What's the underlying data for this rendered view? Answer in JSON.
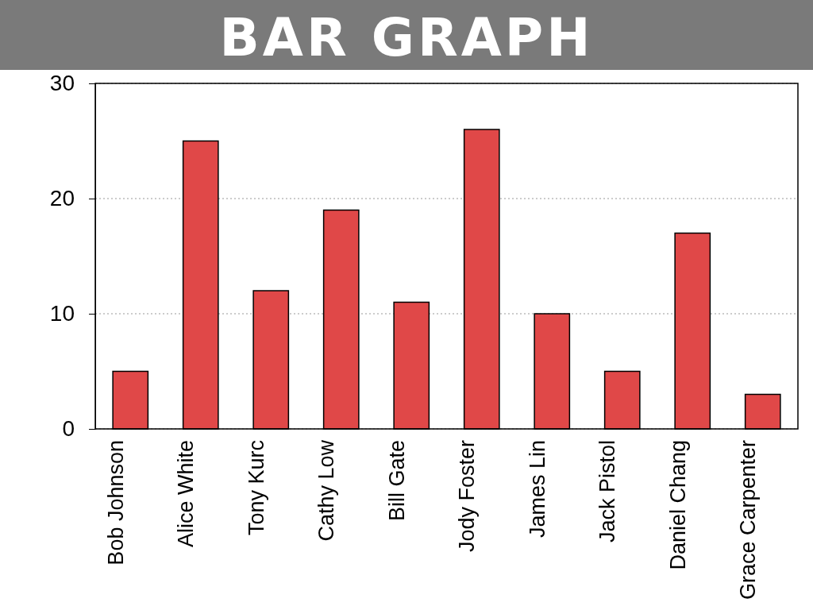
{
  "chart_data": {
    "type": "bar",
    "title": "BAR GRAPH",
    "categories": [
      "Bob Johnson",
      "Alice White",
      "Tony Kurc",
      "Cathy Low",
      "Bill Gate",
      "Jody Foster",
      "James Lin",
      "Jack Pistol",
      "Daniel Chang",
      "Grace Carpenter"
    ],
    "values": [
      5,
      25,
      12,
      19,
      11,
      26,
      10,
      5,
      17,
      3
    ],
    "color": "#e04848",
    "ylim": [
      0,
      30
    ],
    "yticks": [
      0,
      10,
      20,
      30
    ],
    "grid": "y"
  }
}
